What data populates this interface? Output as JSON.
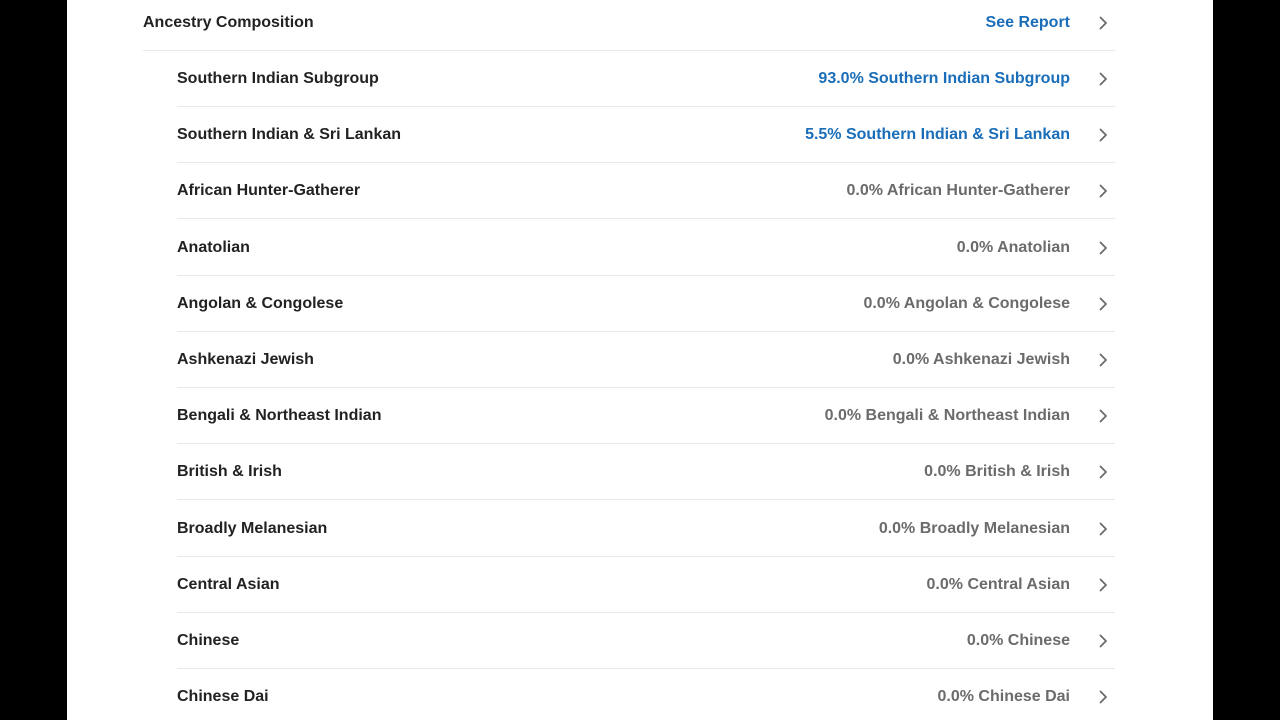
{
  "header": {
    "title": "Ancestry Composition",
    "link_label": "See Report"
  },
  "rows": [
    {
      "label": "Southern Indian Subgroup",
      "value": "93.0% Southern Indian Subgroup",
      "highlight": true
    },
    {
      "label": "Southern Indian & Sri Lankan",
      "value": "5.5% Southern Indian & Sri Lankan",
      "highlight": true
    },
    {
      "label": "African Hunter-Gatherer",
      "value": "0.0% African Hunter-Gatherer",
      "highlight": false
    },
    {
      "label": "Anatolian",
      "value": "0.0% Anatolian",
      "highlight": false
    },
    {
      "label": "Angolan & Congolese",
      "value": "0.0% Angolan & Congolese",
      "highlight": false
    },
    {
      "label": "Ashkenazi Jewish",
      "value": "0.0% Ashkenazi Jewish",
      "highlight": false
    },
    {
      "label": "Bengali & Northeast Indian",
      "value": "0.0% Bengali & Northeast Indian",
      "highlight": false
    },
    {
      "label": "British & Irish",
      "value": "0.0% British & Irish",
      "highlight": false
    },
    {
      "label": "Broadly Melanesian",
      "value": "0.0% Broadly Melanesian",
      "highlight": false
    },
    {
      "label": "Central Asian",
      "value": "0.0% Central Asian",
      "highlight": false
    },
    {
      "label": "Chinese",
      "value": "0.0% Chinese",
      "highlight": false
    },
    {
      "label": "Chinese Dai",
      "value": "0.0% Chinese Dai",
      "highlight": false
    }
  ],
  "colors": {
    "link": "#1a6db8",
    "muted": "#6b6b6b",
    "text": "#222222"
  },
  "icons": {
    "row_chevron": "chevron-right-icon"
  }
}
